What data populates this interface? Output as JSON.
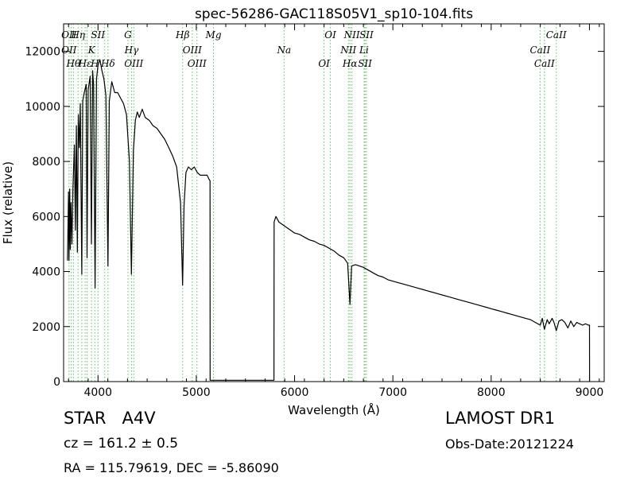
{
  "chart_data": {
    "type": "line",
    "title": "spec-56286-GAC118S05V1_sp10-104.fits",
    "xlabel": "Wavelength (Å)",
    "ylabel": "Flux (relative)",
    "xlim": [
      3650,
      9150
    ],
    "ylim": [
      0,
      13000
    ],
    "xticks": [
      4000,
      5000,
      6000,
      7000,
      8000,
      9000
    ],
    "yticks": [
      0,
      2000,
      4000,
      6000,
      8000,
      10000,
      12000
    ],
    "series": [
      {
        "color": "#000000",
        "points": [
          [
            3690,
            4400
          ],
          [
            3700,
            6900
          ],
          [
            3705,
            4400
          ],
          [
            3712,
            7000
          ],
          [
            3718,
            4800
          ],
          [
            3725,
            6500
          ],
          [
            3735,
            5000
          ],
          [
            3745,
            7000
          ],
          [
            3760,
            8600
          ],
          [
            3770,
            5500
          ],
          [
            3780,
            9300
          ],
          [
            3790,
            4700
          ],
          [
            3800,
            9700
          ],
          [
            3810,
            8500
          ],
          [
            3820,
            10100
          ],
          [
            3835,
            3900
          ],
          [
            3845,
            10200
          ],
          [
            3860,
            10500
          ],
          [
            3880,
            10800
          ],
          [
            3889,
            4500
          ],
          [
            3900,
            10600
          ],
          [
            3920,
            11100
          ],
          [
            3933,
            5000
          ],
          [
            3945,
            11300
          ],
          [
            3955,
            10800
          ],
          [
            3970,
            3400
          ],
          [
            3985,
            11000
          ],
          [
            4000,
            11500
          ],
          [
            4020,
            11700
          ],
          [
            4040,
            11300
          ],
          [
            4060,
            11000
          ],
          [
            4080,
            10400
          ],
          [
            4101,
            4200
          ],
          [
            4115,
            10200
          ],
          [
            4140,
            10900
          ],
          [
            4170,
            10500
          ],
          [
            4200,
            10500
          ],
          [
            4230,
            10300
          ],
          [
            4260,
            10100
          ],
          [
            4290,
            9700
          ],
          [
            4320,
            8000
          ],
          [
            4340,
            3900
          ],
          [
            4360,
            8400
          ],
          [
            4380,
            9500
          ],
          [
            4400,
            9800
          ],
          [
            4420,
            9600
          ],
          [
            4450,
            9900
          ],
          [
            4480,
            9600
          ],
          [
            4520,
            9500
          ],
          [
            4560,
            9300
          ],
          [
            4600,
            9200
          ],
          [
            4640,
            9000
          ],
          [
            4680,
            8800
          ],
          [
            4720,
            8500
          ],
          [
            4760,
            8200
          ],
          [
            4800,
            7800
          ],
          [
            4840,
            6500
          ],
          [
            4861,
            3500
          ],
          [
            4875,
            6400
          ],
          [
            4895,
            7600
          ],
          [
            4920,
            7800
          ],
          [
            4950,
            7700
          ],
          [
            4980,
            7800
          ],
          [
            5010,
            7600
          ],
          [
            5040,
            7500
          ],
          [
            5080,
            7500
          ],
          [
            5110,
            7500
          ],
          [
            5130,
            7350
          ],
          [
            5140,
            7300
          ],
          [
            5141,
            50
          ],
          [
            5790,
            50
          ],
          [
            5792,
            5800
          ],
          [
            5810,
            6000
          ],
          [
            5840,
            5800
          ],
          [
            5880,
            5700
          ],
          [
            5920,
            5600
          ],
          [
            5960,
            5500
          ],
          [
            6000,
            5400
          ],
          [
            6050,
            5350
          ],
          [
            6100,
            5250
          ],
          [
            6150,
            5150
          ],
          [
            6200,
            5100
          ],
          [
            6250,
            5000
          ],
          [
            6300,
            4950
          ],
          [
            6350,
            4850
          ],
          [
            6400,
            4750
          ],
          [
            6450,
            4600
          ],
          [
            6500,
            4500
          ],
          [
            6540,
            4300
          ],
          [
            6563,
            2800
          ],
          [
            6580,
            4200
          ],
          [
            6620,
            4250
          ],
          [
            6660,
            4200
          ],
          [
            6700,
            4150
          ],
          [
            6750,
            4050
          ],
          [
            6800,
            3950
          ],
          [
            6850,
            3850
          ],
          [
            6900,
            3800
          ],
          [
            6950,
            3700
          ],
          [
            7000,
            3650
          ],
          [
            7050,
            3600
          ],
          [
            7100,
            3550
          ],
          [
            7150,
            3500
          ],
          [
            7200,
            3450
          ],
          [
            7250,
            3400
          ],
          [
            7300,
            3350
          ],
          [
            7350,
            3300
          ],
          [
            7400,
            3250
          ],
          [
            7450,
            3200
          ],
          [
            7500,
            3150
          ],
          [
            7550,
            3100
          ],
          [
            7600,
            3050
          ],
          [
            7650,
            3000
          ],
          [
            7700,
            2950
          ],
          [
            7750,
            2900
          ],
          [
            7800,
            2850
          ],
          [
            7850,
            2800
          ],
          [
            7900,
            2750
          ],
          [
            7950,
            2700
          ],
          [
            8000,
            2650
          ],
          [
            8050,
            2600
          ],
          [
            8100,
            2550
          ],
          [
            8150,
            2500
          ],
          [
            8200,
            2450
          ],
          [
            8250,
            2400
          ],
          [
            8300,
            2350
          ],
          [
            8350,
            2300
          ],
          [
            8400,
            2250
          ],
          [
            8450,
            2150
          ],
          [
            8500,
            2050
          ],
          [
            8520,
            2300
          ],
          [
            8542,
            1900
          ],
          [
            8570,
            2250
          ],
          [
            8590,
            2100
          ],
          [
            8620,
            2300
          ],
          [
            8640,
            2150
          ],
          [
            8662,
            1850
          ],
          [
            8690,
            2200
          ],
          [
            8720,
            2250
          ],
          [
            8750,
            2150
          ],
          [
            8780,
            1950
          ],
          [
            8810,
            2200
          ],
          [
            8840,
            2000
          ],
          [
            8870,
            2150
          ],
          [
            8900,
            2100
          ],
          [
            8930,
            2050
          ],
          [
            8960,
            2100
          ],
          [
            8990,
            2050
          ],
          [
            9000,
            2050
          ],
          [
            9001,
            0
          ]
        ]
      }
    ],
    "lines": [
      {
        "x": 3705,
        "labels": [
          "OII",
          "OII"
        ]
      },
      {
        "x": 3728,
        "labels": []
      },
      {
        "x": 3750,
        "labels": [
          "Hθ"
        ]
      },
      {
        "x": 3797,
        "labels": [
          "Hη"
        ]
      },
      {
        "x": 3835,
        "labels": []
      },
      {
        "x": 3869,
        "labels": [
          "Hε"
        ]
      },
      {
        "x": 3889,
        "labels": []
      },
      {
        "x": 3934,
        "labels": [
          "K"
        ]
      },
      {
        "x": 3968,
        "labels": [
          "H"
        ]
      },
      {
        "x": 4000,
        "labels": [
          "SII"
        ]
      },
      {
        "x": 4068,
        "labels": []
      },
      {
        "x": 4102,
        "labels": [
          "Hδ"
        ]
      },
      {
        "x": 4305,
        "labels": [
          "G"
        ]
      },
      {
        "x": 4341,
        "labels": [
          "Hγ"
        ]
      },
      {
        "x": 4364,
        "labels": [
          "OIII"
        ]
      },
      {
        "x": 4861,
        "labels": [
          "Hβ"
        ]
      },
      {
        "x": 4959,
        "labels": [
          "OIII"
        ]
      },
      {
        "x": 5007,
        "labels": [
          "OIII"
        ]
      },
      {
        "x": 5175,
        "labels": [
          "Mg"
        ]
      },
      {
        "x": 5893,
        "labels": [
          "Na"
        ]
      },
      {
        "x": 6300,
        "labels": [
          "OI"
        ]
      },
      {
        "x": 6364,
        "labels": [
          "OI"
        ]
      },
      {
        "x": 6548,
        "labels": [
          "NII"
        ]
      },
      {
        "x": 6563,
        "labels": [
          "Hα"
        ]
      },
      {
        "x": 6583,
        "labels": [
          "NII"
        ]
      },
      {
        "x": 6707,
        "labels": [
          "Li"
        ]
      },
      {
        "x": 6716,
        "labels": [
          "SII"
        ]
      },
      {
        "x": 6731,
        "labels": [
          "SII"
        ]
      },
      {
        "x": 8498,
        "labels": [
          "CaII"
        ]
      },
      {
        "x": 8542,
        "labels": [
          "CaII"
        ]
      },
      {
        "x": 8662,
        "labels": [
          "CaII"
        ]
      }
    ]
  },
  "info": {
    "class": "STAR   A4V",
    "survey": "LAMOST DR1",
    "cz": "cz = 161.2 ± 0.5",
    "obsdate": "Obs-Date:20121224",
    "radec": "RA = 115.79619, DEC = -5.86090"
  },
  "colors": {
    "line": "#000000",
    "marker_lines": "#66bb66"
  }
}
